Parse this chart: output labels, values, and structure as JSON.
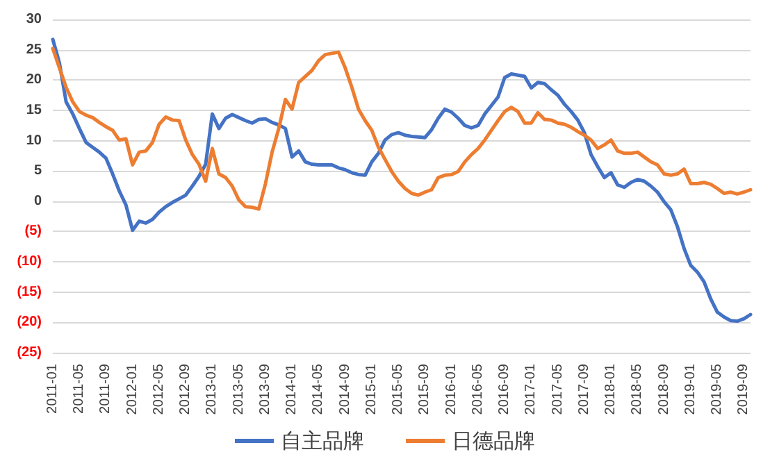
{
  "chart_data": {
    "type": "line",
    "categories": [
      "2011-01",
      null,
      null,
      null,
      "2011-05",
      null,
      null,
      null,
      "2011-09",
      null,
      null,
      null,
      "2012-01",
      null,
      null,
      null,
      "2012-05",
      null,
      null,
      null,
      "2012-09",
      null,
      null,
      null,
      "2013-01",
      null,
      null,
      null,
      "2013-05",
      null,
      null,
      null,
      "2013-09",
      null,
      null,
      null,
      "2014-01",
      null,
      null,
      null,
      "2014-05",
      null,
      null,
      null,
      "2014-09",
      null,
      null,
      null,
      "2015-01",
      null,
      null,
      null,
      "2015-05",
      null,
      null,
      null,
      "2015-09",
      null,
      null,
      null,
      "2016-01",
      null,
      null,
      null,
      "2016-05",
      null,
      null,
      null,
      "2016-09",
      null,
      null,
      null,
      "2017-01",
      null,
      null,
      null,
      "2017-05",
      null,
      null,
      null,
      "2017-09",
      null,
      null,
      null,
      "2018-01",
      null,
      null,
      null,
      "2018-05",
      null,
      null,
      null,
      "2018-09",
      null,
      null,
      null,
      "2019-01",
      null,
      null,
      null,
      "2019-05",
      null,
      null,
      null,
      "2019-09",
      null
    ],
    "series": [
      {
        "name": "自主品牌",
        "color": "#4472c4",
        "values": [
          26.7,
          22.8,
          16.4,
          14.4,
          12,
          9.7,
          8.9,
          8.1,
          7.1,
          4.5,
          1.7,
          -0.6,
          -4.8,
          -3.3,
          -3.6,
          -3,
          -1.8,
          -0.9,
          -0.2,
          0.4,
          1,
          2.5,
          4.1,
          6.1,
          14.4,
          12,
          13.7,
          14.3,
          13.8,
          13.3,
          12.9,
          13.5,
          13.6,
          13,
          12.6,
          12,
          7.3,
          8.3,
          6.5,
          6.1,
          6,
          6,
          6,
          5.5,
          5.2,
          4.7,
          4.4,
          4.3,
          6.5,
          7.9,
          10.1,
          11,
          11.3,
          10.9,
          10.7,
          10.6,
          10.5,
          11.8,
          13.7,
          15.2,
          14.7,
          13.7,
          12.5,
          12.1,
          12.5,
          14.4,
          15.8,
          17.2,
          20.4,
          21,
          20.8,
          20.6,
          18.7,
          19.6,
          19.4,
          18.4,
          17.5,
          16,
          14.8,
          13.4,
          11.3,
          7.7,
          5.7,
          3.9,
          4.7,
          2.7,
          2.3,
          3.1,
          3.6,
          3.3,
          2.5,
          1.5,
          -0.1,
          -1.4,
          -4.2,
          -7.8,
          -10.6,
          -11.7,
          -13.3,
          -16.1,
          -18.3,
          -19.1,
          -19.7,
          -19.8,
          -19.4,
          -18.7
        ]
      },
      {
        "name": "日德品牌",
        "color": "#ed7d31",
        "values": [
          25.2,
          22,
          18.8,
          16.4,
          14.8,
          14.2,
          13.8,
          13,
          12.3,
          11.7,
          10.1,
          10.3,
          6,
          8.1,
          8.3,
          9.7,
          12.7,
          13.9,
          13.4,
          13.3,
          10.1,
          7.7,
          6.1,
          3.3,
          8.7,
          4.5,
          3.9,
          2.5,
          0.2,
          -0.9,
          -1,
          -1.3,
          2.9,
          8.1,
          12,
          16.8,
          15.2,
          19.6,
          20.6,
          21.6,
          23.2,
          24.2,
          24.4,
          24.6,
          22,
          18.8,
          15.2,
          13.3,
          11.7,
          8.9,
          6.9,
          4.9,
          3.3,
          2.1,
          1.3,
          1,
          1.5,
          1.9,
          3.9,
          4.3,
          4.4,
          4.9,
          6.5,
          7.7,
          8.7,
          10.1,
          11.7,
          13.3,
          14.8,
          15.5,
          14.8,
          12.9,
          12.9,
          14.6,
          13.5,
          13.4,
          12.9,
          12.7,
          12.2,
          11.5,
          10.9,
          10.1,
          8.7,
          9.3,
          10.1,
          8.3,
          7.9,
          7.9,
          8.1,
          7.3,
          6.5,
          6,
          4.5,
          4.3,
          4.5,
          5.3,
          2.9,
          2.9,
          3.1,
          2.8,
          2.1,
          1.3,
          1.5,
          1.2,
          1.5,
          1.9
        ]
      }
    ],
    "ylim": [
      -25,
      30
    ],
    "yticks": [
      {
        "value": -25,
        "label": "(25)"
      },
      {
        "value": -20,
        "label": "(20)"
      },
      {
        "value": -15,
        "label": "(15)"
      },
      {
        "value": -10,
        "label": "(10)"
      },
      {
        "value": -5,
        "label": "(5)"
      },
      0,
      5,
      10,
      15,
      20,
      25,
      30
    ],
    "grid": "y",
    "legend": "bottom",
    "marker": "none",
    "line_style": "solid"
  }
}
